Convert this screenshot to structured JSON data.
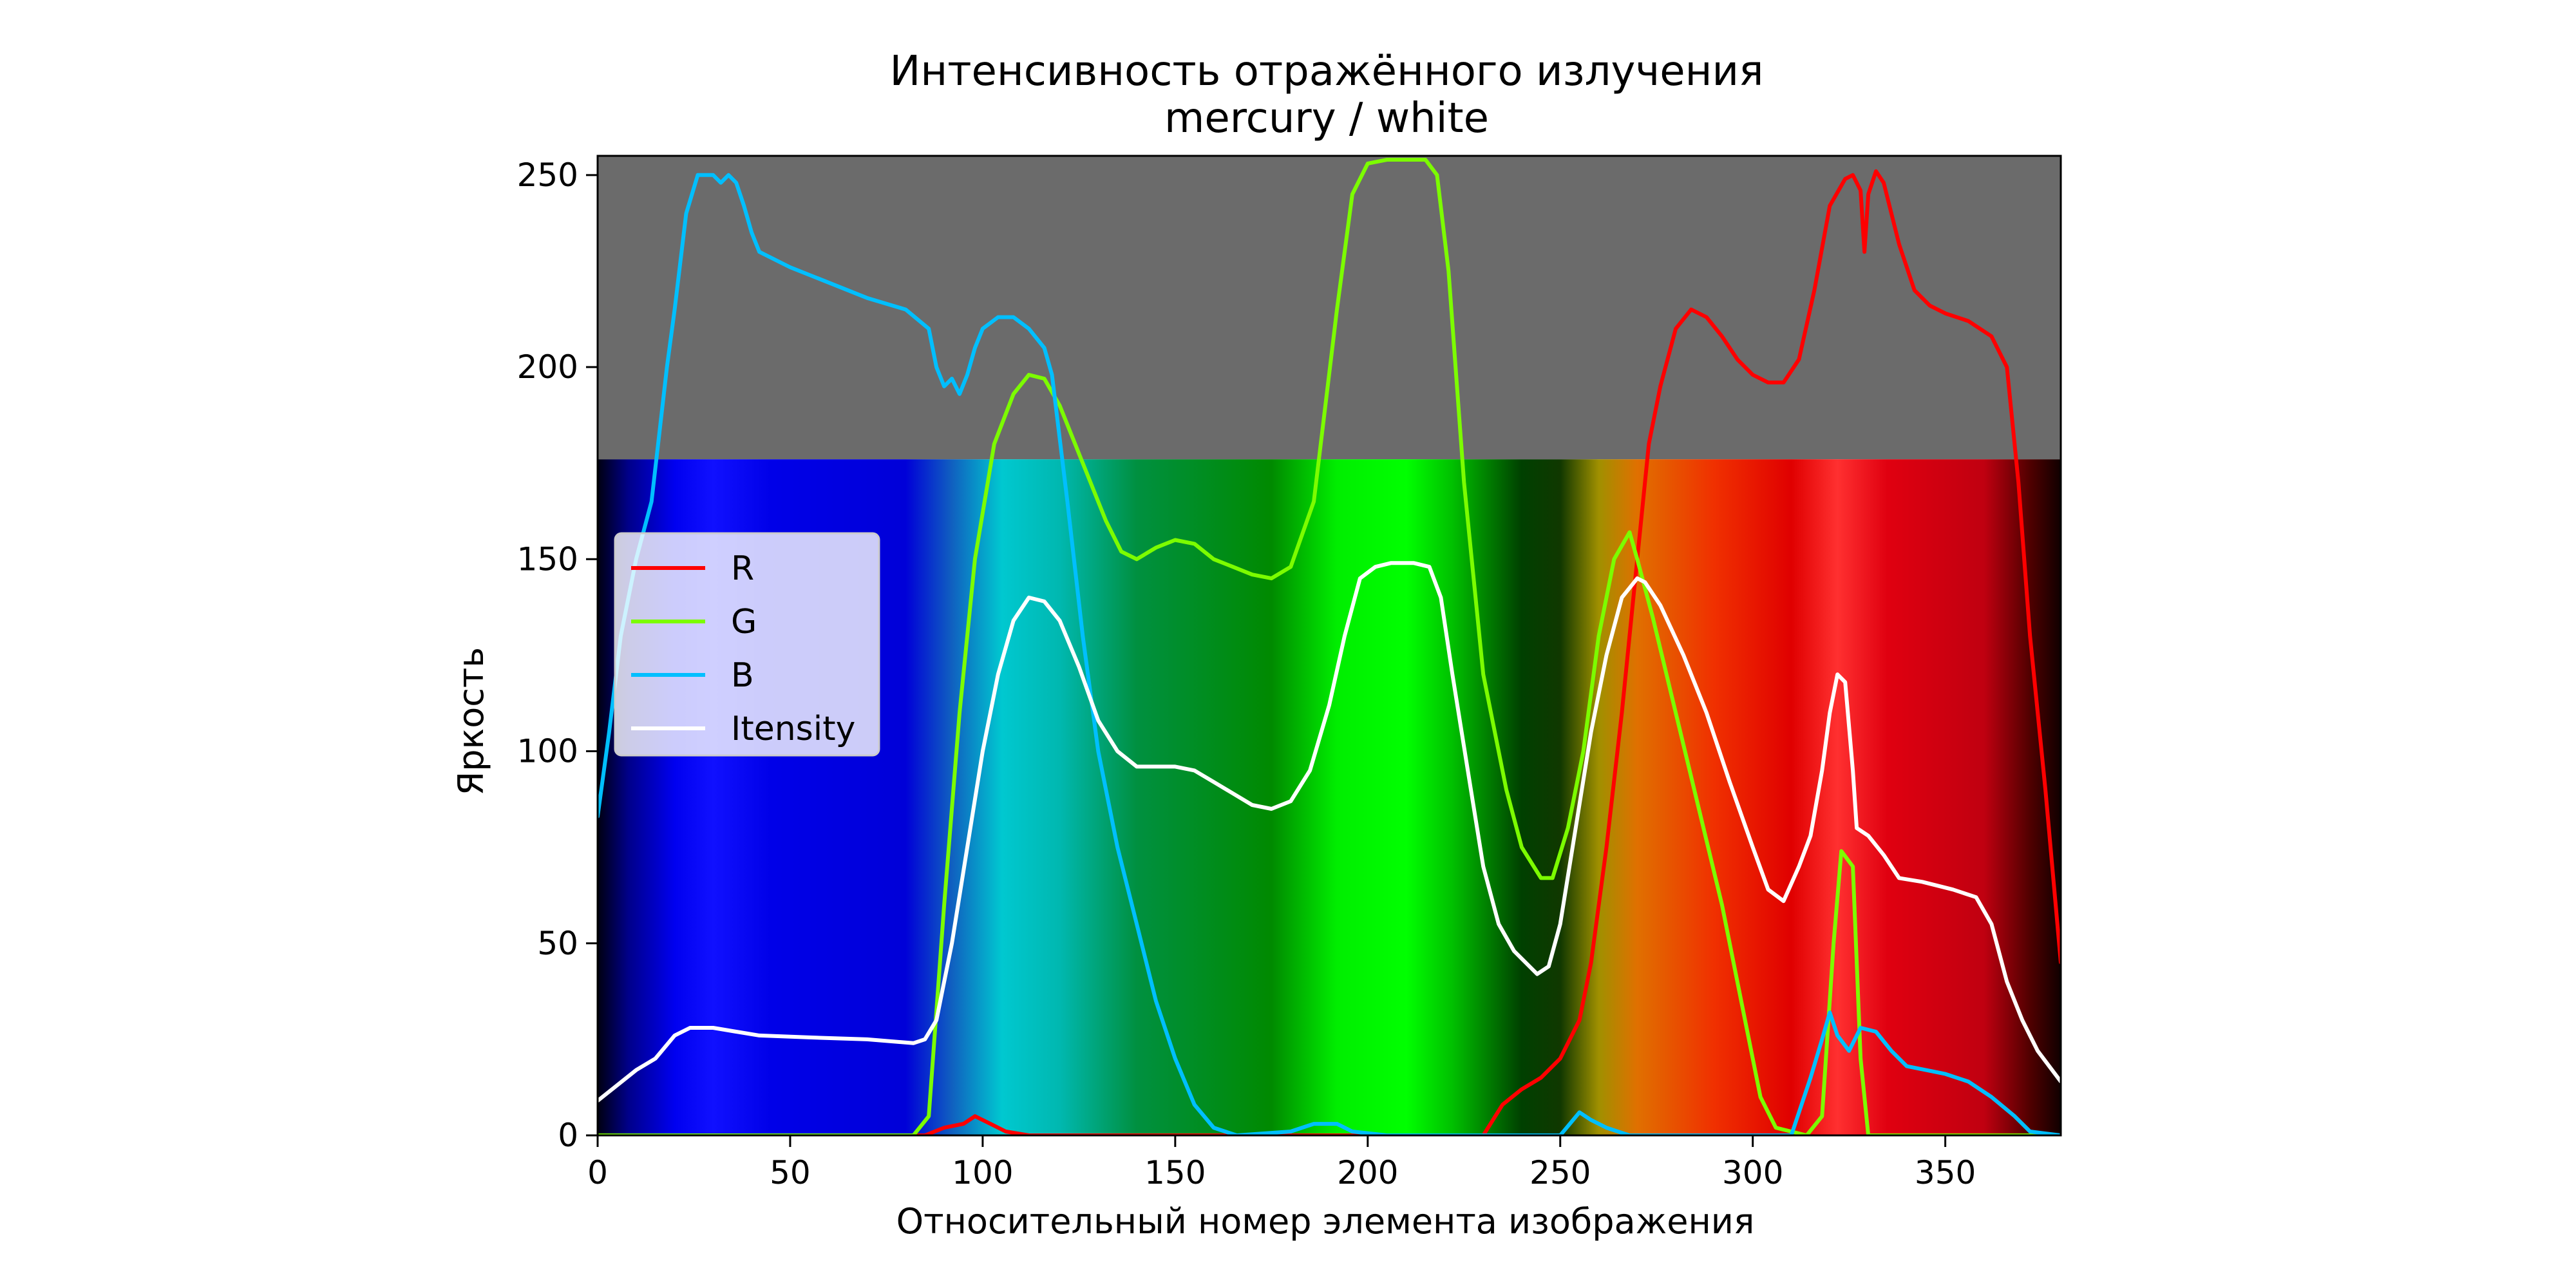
{
  "chart_data": {
    "type": "line",
    "title": "Интенсивность отражённого излучения",
    "subtitle": "mercury / white",
    "xlabel": "Относительный номер элемента изображения",
    "ylabel": "Яркость",
    "xlim": [
      0,
      380
    ],
    "ylim": [
      0,
      255
    ],
    "xticks": [
      0,
      50,
      100,
      150,
      200,
      250,
      300,
      350
    ],
    "yticks": [
      0,
      50,
      100,
      150,
      200,
      250
    ],
    "grid": false,
    "legend_position": "center-left",
    "background": {
      "upper_color": "#6b6b6b",
      "spectrum_top": 176,
      "bands": [
        {
          "x": 0,
          "color": "#000010"
        },
        {
          "x": 8,
          "color": "#00008a"
        },
        {
          "x": 20,
          "color": "#0000f0"
        },
        {
          "x": 30,
          "color": "#1010ff"
        },
        {
          "x": 45,
          "color": "#0000e8"
        },
        {
          "x": 80,
          "color": "#0000d8"
        },
        {
          "x": 92,
          "color": "#1060c0"
        },
        {
          "x": 105,
          "color": "#00c8d0"
        },
        {
          "x": 120,
          "color": "#00b8b0"
        },
        {
          "x": 140,
          "color": "#009040"
        },
        {
          "x": 175,
          "color": "#008a00"
        },
        {
          "x": 192,
          "color": "#00ee00"
        },
        {
          "x": 210,
          "color": "#00ff00"
        },
        {
          "x": 222,
          "color": "#00c000"
        },
        {
          "x": 240,
          "color": "#004000"
        },
        {
          "x": 250,
          "color": "#103800"
        },
        {
          "x": 260,
          "color": "#a09000"
        },
        {
          "x": 270,
          "color": "#e07000"
        },
        {
          "x": 290,
          "color": "#f03000"
        },
        {
          "x": 310,
          "color": "#e00000"
        },
        {
          "x": 322,
          "color": "#ff3030"
        },
        {
          "x": 335,
          "color": "#e00010"
        },
        {
          "x": 360,
          "color": "#c00010"
        },
        {
          "x": 372,
          "color": "#500000"
        },
        {
          "x": 380,
          "color": "#100000"
        }
      ]
    },
    "series": [
      {
        "name": "R",
        "color": "#ff0000",
        "points": [
          [
            0,
            0
          ],
          [
            85,
            0
          ],
          [
            90,
            2
          ],
          [
            95,
            3
          ],
          [
            98,
            5
          ],
          [
            102,
            3
          ],
          [
            106,
            1
          ],
          [
            112,
            0
          ],
          [
            160,
            0
          ],
          [
            230,
            0
          ],
          [
            235,
            8
          ],
          [
            240,
            12
          ],
          [
            245,
            15
          ],
          [
            250,
            20
          ],
          [
            255,
            30
          ],
          [
            258,
            45
          ],
          [
            262,
            75
          ],
          [
            266,
            110
          ],
          [
            270,
            150
          ],
          [
            273,
            180
          ],
          [
            276,
            195
          ],
          [
            280,
            210
          ],
          [
            284,
            215
          ],
          [
            288,
            213
          ],
          [
            292,
            208
          ],
          [
            296,
            202
          ],
          [
            300,
            198
          ],
          [
            304,
            196
          ],
          [
            308,
            196
          ],
          [
            312,
            202
          ],
          [
            316,
            220
          ],
          [
            320,
            242
          ],
          [
            324,
            249
          ],
          [
            326,
            250
          ],
          [
            328,
            246
          ],
          [
            329,
            230
          ],
          [
            330,
            245
          ],
          [
            332,
            251
          ],
          [
            334,
            248
          ],
          [
            338,
            232
          ],
          [
            342,
            220
          ],
          [
            346,
            216
          ],
          [
            350,
            214
          ],
          [
            356,
            212
          ],
          [
            362,
            208
          ],
          [
            366,
            200
          ],
          [
            369,
            170
          ],
          [
            372,
            130
          ],
          [
            376,
            90
          ],
          [
            380,
            45
          ]
        ]
      },
      {
        "name": "G",
        "color": "#7cfc00",
        "points": [
          [
            0,
            0
          ],
          [
            82,
            0
          ],
          [
            86,
            5
          ],
          [
            90,
            60
          ],
          [
            94,
            110
          ],
          [
            98,
            150
          ],
          [
            103,
            180
          ],
          [
            108,
            193
          ],
          [
            112,
            198
          ],
          [
            116,
            197
          ],
          [
            120,
            190
          ],
          [
            124,
            180
          ],
          [
            128,
            170
          ],
          [
            132,
            160
          ],
          [
            136,
            152
          ],
          [
            140,
            150
          ],
          [
            145,
            153
          ],
          [
            150,
            155
          ],
          [
            155,
            154
          ],
          [
            160,
            150
          ],
          [
            165,
            148
          ],
          [
            170,
            146
          ],
          [
            175,
            145
          ],
          [
            180,
            148
          ],
          [
            186,
            165
          ],
          [
            192,
            215
          ],
          [
            196,
            245
          ],
          [
            200,
            253
          ],
          [
            205,
            254
          ],
          [
            210,
            254
          ],
          [
            215,
            254
          ],
          [
            218,
            250
          ],
          [
            221,
            225
          ],
          [
            225,
            170
          ],
          [
            230,
            120
          ],
          [
            236,
            90
          ],
          [
            240,
            75
          ],
          [
            245,
            67
          ],
          [
            248,
            67
          ],
          [
            252,
            80
          ],
          [
            256,
            100
          ],
          [
            260,
            130
          ],
          [
            264,
            150
          ],
          [
            268,
            157
          ],
          [
            270,
            150
          ],
          [
            274,
            135
          ],
          [
            280,
            110
          ],
          [
            286,
            85
          ],
          [
            292,
            60
          ],
          [
            298,
            30
          ],
          [
            302,
            10
          ],
          [
            306,
            2
          ],
          [
            314,
            0
          ],
          [
            318,
            5
          ],
          [
            321,
            50
          ],
          [
            323,
            74
          ],
          [
            326,
            70
          ],
          [
            328,
            20
          ],
          [
            330,
            0
          ],
          [
            380,
            0
          ]
        ]
      },
      {
        "name": "B",
        "color": "#00bfff",
        "points": [
          [
            0,
            83
          ],
          [
            3,
            105
          ],
          [
            6,
            130
          ],
          [
            10,
            150
          ],
          [
            14,
            165
          ],
          [
            18,
            200
          ],
          [
            20,
            215
          ],
          [
            23,
            240
          ],
          [
            26,
            250
          ],
          [
            30,
            250
          ],
          [
            32,
            248
          ],
          [
            34,
            250
          ],
          [
            36,
            248
          ],
          [
            38,
            242
          ],
          [
            40,
            235
          ],
          [
            42,
            230
          ],
          [
            50,
            226
          ],
          [
            60,
            222
          ],
          [
            70,
            218
          ],
          [
            80,
            215
          ],
          [
            86,
            210
          ],
          [
            88,
            200
          ],
          [
            90,
            195
          ],
          [
            92,
            197
          ],
          [
            94,
            193
          ],
          [
            96,
            198
          ],
          [
            98,
            205
          ],
          [
            100,
            210
          ],
          [
            104,
            213
          ],
          [
            108,
            213
          ],
          [
            112,
            210
          ],
          [
            116,
            205
          ],
          [
            118,
            198
          ],
          [
            122,
            165
          ],
          [
            126,
            130
          ],
          [
            130,
            100
          ],
          [
            135,
            75
          ],
          [
            140,
            55
          ],
          [
            145,
            35
          ],
          [
            150,
            20
          ],
          [
            155,
            8
          ],
          [
            160,
            2
          ],
          [
            166,
            0
          ],
          [
            180,
            1
          ],
          [
            186,
            3
          ],
          [
            192,
            3
          ],
          [
            196,
            1
          ],
          [
            205,
            0
          ],
          [
            250,
            0
          ],
          [
            255,
            6
          ],
          [
            258,
            4
          ],
          [
            262,
            2
          ],
          [
            268,
            0
          ],
          [
            310,
            0
          ],
          [
            315,
            15
          ],
          [
            318,
            25
          ],
          [
            320,
            32
          ],
          [
            322,
            26
          ],
          [
            325,
            22
          ],
          [
            328,
            28
          ],
          [
            332,
            27
          ],
          [
            336,
            22
          ],
          [
            340,
            18
          ],
          [
            350,
            16
          ],
          [
            356,
            14
          ],
          [
            362,
            10
          ],
          [
            368,
            5
          ],
          [
            372,
            1
          ],
          [
            380,
            0
          ]
        ]
      },
      {
        "name": "Itensity",
        "color": "#ffffff",
        "points": [
          [
            0,
            9
          ],
          [
            5,
            13
          ],
          [
            10,
            17
          ],
          [
            15,
            20
          ],
          [
            20,
            26
          ],
          [
            24,
            28
          ],
          [
            30,
            28
          ],
          [
            36,
            27
          ],
          [
            42,
            26
          ],
          [
            55,
            25.5
          ],
          [
            70,
            25
          ],
          [
            82,
            24
          ],
          [
            85,
            25
          ],
          [
            88,
            30
          ],
          [
            92,
            50
          ],
          [
            96,
            75
          ],
          [
            100,
            100
          ],
          [
            104,
            120
          ],
          [
            108,
            134
          ],
          [
            112,
            140
          ],
          [
            116,
            139
          ],
          [
            120,
            134
          ],
          [
            125,
            122
          ],
          [
            130,
            108
          ],
          [
            135,
            100
          ],
          [
            140,
            96
          ],
          [
            150,
            96
          ],
          [
            155,
            95
          ],
          [
            160,
            92
          ],
          [
            165,
            89
          ],
          [
            170,
            86
          ],
          [
            175,
            85
          ],
          [
            180,
            87
          ],
          [
            185,
            95
          ],
          [
            190,
            112
          ],
          [
            194,
            130
          ],
          [
            198,
            145
          ],
          [
            202,
            148
          ],
          [
            206,
            149
          ],
          [
            212,
            149
          ],
          [
            216,
            148
          ],
          [
            219,
            140
          ],
          [
            222,
            120
          ],
          [
            226,
            95
          ],
          [
            230,
            70
          ],
          [
            234,
            55
          ],
          [
            238,
            48
          ],
          [
            244,
            42
          ],
          [
            247,
            44
          ],
          [
            250,
            55
          ],
          [
            254,
            80
          ],
          [
            258,
            105
          ],
          [
            262,
            125
          ],
          [
            266,
            140
          ],
          [
            270,
            145
          ],
          [
            272,
            144
          ],
          [
            276,
            138
          ],
          [
            282,
            125
          ],
          [
            288,
            110
          ],
          [
            294,
            92
          ],
          [
            300,
            75
          ],
          [
            304,
            64
          ],
          [
            308,
            61
          ],
          [
            312,
            70
          ],
          [
            315,
            78
          ],
          [
            318,
            95
          ],
          [
            320,
            110
          ],
          [
            322,
            120
          ],
          [
            324,
            118
          ],
          [
            326,
            95
          ],
          [
            327,
            80
          ],
          [
            330,
            78
          ],
          [
            334,
            73
          ],
          [
            338,
            67
          ],
          [
            344,
            66
          ],
          [
            352,
            64
          ],
          [
            358,
            62
          ],
          [
            362,
            55
          ],
          [
            366,
            40
          ],
          [
            370,
            30
          ],
          [
            374,
            22
          ],
          [
            380,
            14
          ]
        ]
      }
    ]
  }
}
